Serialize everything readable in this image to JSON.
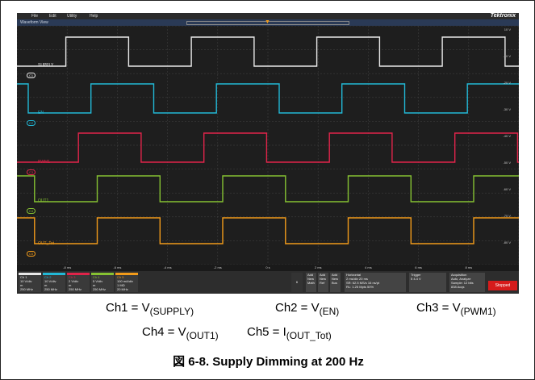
{
  "menu": [
    "File",
    "Edit",
    "Utility",
    "Help"
  ],
  "brand": "Tektronix",
  "waveform_view_title": "Waveform View",
  "colors": {
    "ch1": "#e8e8e8",
    "ch2": "#22b8d6",
    "ch3": "#e0244a",
    "ch4": "#86c232",
    "ch5": "#f29b1a",
    "stopped": "#d61b1b"
  },
  "channels": [
    {
      "id": "ch1",
      "badge": "C1",
      "label": "SUPPLY",
      "color_key": "ch1"
    },
    {
      "id": "ch2",
      "badge": "C2",
      "label": "EN",
      "color_key": "ch2"
    },
    {
      "id": "ch3",
      "badge": "C3",
      "label": "PWM1",
      "color_key": "ch3"
    },
    {
      "id": "ch4",
      "badge": "C4",
      "label": "OUT1",
      "color_key": "ch4"
    },
    {
      "id": "ch5",
      "badge": "C5",
      "label": "OUT_Tot",
      "color_key": "ch5"
    }
  ],
  "volt_labels": [
    "10 V",
    "-10 V",
    "-20 V",
    "-30 V",
    "-40 V",
    "-50 V",
    "-60 V",
    "-70 V",
    "-80 V"
  ],
  "time_ticks": [
    "-8 ms",
    "-6 ms",
    "-4 ms",
    "-2 ms",
    "0 s",
    "2 ms",
    "4 ms",
    "6 ms",
    "8 ms"
  ],
  "bottom_channels": [
    {
      "title": "Ch 1",
      "lines": [
        "10 V/div",
        "m",
        "250 MHz"
      ]
    },
    {
      "title": "Ch 2",
      "lines": [
        "10 V/div",
        "m",
        "250 MHz"
      ]
    },
    {
      "title": "Ch 3",
      "lines": [
        "2 V/div",
        "m",
        "250 MHz"
      ]
    },
    {
      "title": "Ch 4",
      "lines": [
        "5 V/div",
        "m",
        "250 MHz"
      ]
    },
    {
      "title": "Ch 5",
      "lines": [
        "100 mA/div",
        "1 MΩ",
        "20 MHz"
      ]
    }
  ],
  "add_buttons": [
    "Add New Math",
    "Add New Ref",
    "Add New Bus"
  ],
  "six": "6",
  "horizontal": {
    "title": "Horizontal",
    "lines": [
      "2 ms/div   20 ms",
      "SR: 62.5 MS/s  16 ns/pt",
      "RL: 1.25 Mpts  50%"
    ]
  },
  "trigger": {
    "title": "Trigger",
    "lines": [
      "5   4.4 V"
    ]
  },
  "acquisition": {
    "title": "Acquisition",
    "lines": [
      "Auto,  Analyze",
      "Sample: 12 bits",
      "838 Acqs"
    ]
  },
  "stopped_label": "Stopped",
  "captions": {
    "ch1": {
      "pre": "Ch1 = V",
      "sub": "(SUPPLY)"
    },
    "ch2": {
      "pre": "Ch2 = V",
      "sub": "(EN)"
    },
    "ch3": {
      "pre": "Ch3 = V",
      "sub": "(PWM1)"
    },
    "ch4": {
      "pre": "Ch4 = V",
      "sub": "(OUT1)"
    },
    "ch5": {
      "pre": "Ch5 = I",
      "sub": "(OUT_Tot)"
    }
  },
  "figure_title": "図 6-8. Supply Dimming at 200 Hz"
}
